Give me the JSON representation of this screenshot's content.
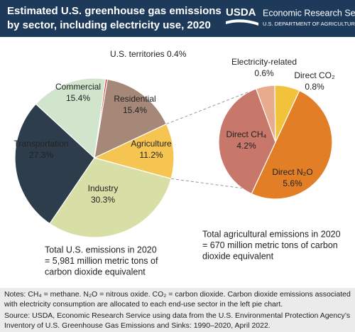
{
  "header": {
    "title": [
      "Estimated U.S. greenhouse gas emissions",
      "by sector, including electricity use, 2020"
    ],
    "logo": "USDA",
    "agency": "Economic Research Service",
    "department": "U.S. DEPARTMENT OF AGRICULTURE"
  },
  "chart_data": [
    {
      "type": "pie",
      "categories": [
        "U.S. territories",
        "Residential",
        "Agriculture",
        "Industry",
        "Transportation",
        "Commercial"
      ],
      "values": [
        0.4,
        15.4,
        11.2,
        30.3,
        27.3,
        15.4
      ],
      "value_labels": [
        "0.4%",
        "15.4%",
        "11.2%",
        "30.3%",
        "27.3%",
        "15.4%"
      ],
      "colors": [
        "#d7362f",
        "#a58878",
        "#f6c451",
        "#d8dfa6",
        "#2e3d4c",
        "#d0e5cb"
      ],
      "caption": [
        "Total U.S. emissions in 2020",
        "= 5,981 million metric tons of",
        "carbon dioxide equivalent"
      ]
    },
    {
      "type": "pie",
      "categories": [
        "Electricity-related",
        "Direct CO₂",
        "Direct N₂O",
        "Direct CH₄"
      ],
      "values": [
        0.6,
        0.8,
        5.6,
        4.2
      ],
      "value_labels": [
        "0.6%",
        "0.8%",
        "5.6%",
        "4.2%"
      ],
      "colors": [
        "#e8ab8e",
        "#f3c23b",
        "#e27f26",
        "#c8776b"
      ],
      "caption": [
        "Total agricultural emissions in 2020",
        "= 670 million metric tons of carbon",
        "dioxide equivalent"
      ]
    }
  ],
  "notes": [
    "Notes: CH₄ = methane. N₂O = nitrous oxide. CO₂ = carbon dioxide. Carbon dioxide emissions associated",
    "with electricity consumption are allocated to each end-use sector in the left pie chart."
  ],
  "source": [
    "Source: USDA, Economic Research Service using data from the U.S. Environmental Protection Agency’s",
    "Inventory of U.S. Greenhouse Gas Emissions and Sinks: 1990–2020, April 2022."
  ]
}
